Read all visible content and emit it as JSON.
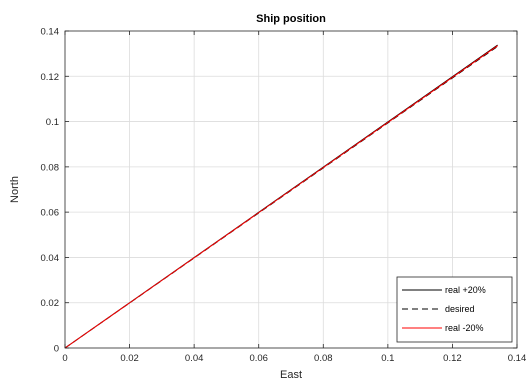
{
  "chart_data": {
    "type": "line",
    "title": "Ship position",
    "xlabel": "East",
    "ylabel": "North",
    "xlim": [
      0,
      0.14
    ],
    "ylim": [
      0,
      0.14
    ],
    "xticks": [
      "0",
      "0.02",
      "0.04",
      "0.06",
      "0.08",
      "0.1",
      "0.12",
      "0.14"
    ],
    "yticks": [
      "0",
      "0.02",
      "0.04",
      "0.06",
      "0.08",
      "0.1",
      "0.12",
      "0.14"
    ],
    "grid": true,
    "legend_position": "bottom-right",
    "series": [
      {
        "name": "real +20%",
        "color": "#000000",
        "style": "solid",
        "x": [
          0,
          0.134
        ],
        "y": [
          0,
          0.1338
        ]
      },
      {
        "name": "desired",
        "color": "#000000",
        "style": "dashed",
        "x": [
          0,
          0.134
        ],
        "y": [
          0,
          0.1332
        ]
      },
      {
        "name": "real -20%",
        "color": "#ff0000",
        "style": "solid",
        "x": [
          0,
          0.134
        ],
        "y": [
          0,
          0.1335
        ]
      }
    ]
  }
}
